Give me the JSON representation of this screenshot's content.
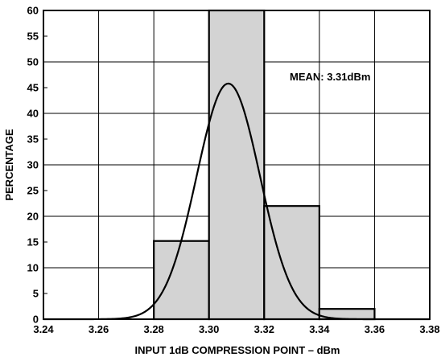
{
  "chart_data": {
    "type": "bar",
    "title": "",
    "xlabel": "INPUT 1dB COMPRESSION POINT – dBm",
    "ylabel": "PERCENTAGE",
    "xlim": [
      3.24,
      3.38
    ],
    "ylim": [
      0,
      60
    ],
    "x_ticks": [
      "3.24",
      "3.26",
      "3.28",
      "3.30",
      "3.32",
      "3.34",
      "3.36",
      "3.38"
    ],
    "y_ticks": [
      "0",
      "5",
      "10",
      "15",
      "20",
      "25",
      "30",
      "35",
      "40",
      "45",
      "50",
      "55",
      "60"
    ],
    "grid": true,
    "bins": [
      {
        "x0": 3.28,
        "x1": 3.3,
        "value": 15.2
      },
      {
        "x0": 3.3,
        "x1": 3.32,
        "value": 60.0
      },
      {
        "x0": 3.32,
        "x1": 3.34,
        "value": 22.0
      },
      {
        "x0": 3.34,
        "x1": 3.36,
        "value": 2.0
      }
    ],
    "fit_curve": {
      "type": "normal",
      "mean": 3.307,
      "sd": 0.0115,
      "peak": 45.8
    },
    "annotation": "MEAN: 3.31dBm",
    "colors": {
      "bar_fill": "#d3d3d3",
      "stroke": "#000000",
      "background": "#ffffff"
    }
  }
}
